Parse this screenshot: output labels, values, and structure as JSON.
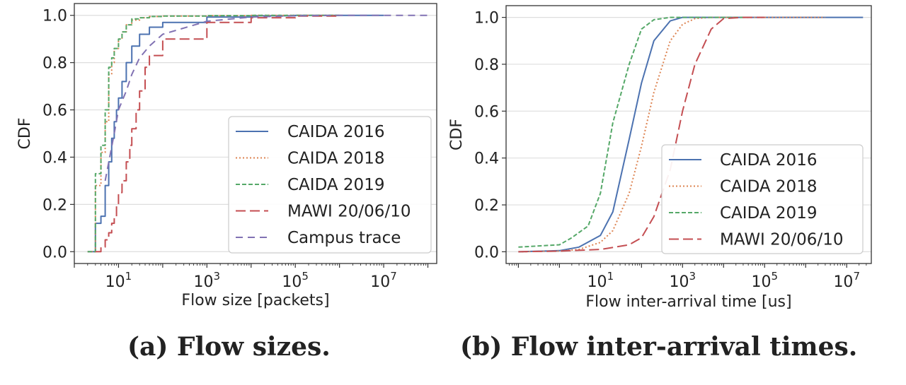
{
  "captions": {
    "a": "(a) Flow sizes.",
    "b": "(b) Flow inter-arrival times."
  },
  "colors": {
    "caida2016": "#4c72b0",
    "caida2018": "#dd8452",
    "caida2019": "#55a868",
    "mawi": "#c44e52",
    "campus": "#8172b3"
  },
  "chart_data": [
    {
      "type": "line",
      "xlabel": "Flow size [packets]",
      "ylabel": "CDF",
      "xscale": "log",
      "xlim_log10": [
        0,
        8.2
      ],
      "ylim": [
        -0.05,
        1.05
      ],
      "xticks": [
        {
          "mant": "10",
          "exp": "1",
          "pos": 1
        },
        {
          "mant": "10",
          "exp": "3",
          "pos": 3
        },
        {
          "mant": "10",
          "exp": "5",
          "pos": 5
        },
        {
          "mant": "10",
          "exp": "7",
          "pos": 7
        }
      ],
      "yticks": [
        "0.0",
        "0.2",
        "0.4",
        "0.6",
        "0.8",
        "1.0"
      ],
      "grid": "horizontal",
      "legend_position": "lower-right",
      "series": [
        {
          "name": "CAIDA 2016",
          "color_key": "caida2016",
          "dash": "solid",
          "step": true,
          "x": [
            2,
            3,
            4,
            5,
            6,
            7,
            8,
            9,
            10,
            12,
            15,
            20,
            30,
            50,
            100,
            1000,
            10000,
            100000,
            1000000,
            10000000
          ],
          "y": [
            0.0,
            0.12,
            0.15,
            0.28,
            0.38,
            0.48,
            0.55,
            0.6,
            0.65,
            0.72,
            0.8,
            0.87,
            0.92,
            0.95,
            0.97,
            0.993,
            0.998,
            1.0,
            1.0,
            1.0
          ]
        },
        {
          "name": "CAIDA 2018",
          "color_key": "caida2018",
          "dash": "dotted",
          "step": true,
          "x": [
            2,
            3,
            4,
            5,
            6,
            7,
            8,
            10,
            12,
            15,
            20,
            30,
            50,
            100,
            1000,
            10000,
            100000,
            1000000
          ],
          "y": [
            0.0,
            0.28,
            0.42,
            0.55,
            0.75,
            0.8,
            0.86,
            0.9,
            0.93,
            0.96,
            0.98,
            0.99,
            0.995,
            0.997,
            0.999,
            1.0,
            1.0,
            1.0
          ]
        },
        {
          "name": "CAIDA 2019",
          "color_key": "caida2019",
          "dash": "dashed",
          "step": true,
          "x": [
            2,
            3,
            4,
            5,
            6,
            7,
            8,
            10,
            12,
            15,
            20,
            30,
            50,
            100,
            1000,
            10000,
            100000,
            1000000
          ],
          "y": [
            0.0,
            0.33,
            0.45,
            0.6,
            0.78,
            0.82,
            0.86,
            0.9,
            0.93,
            0.96,
            0.985,
            0.99,
            0.995,
            0.997,
            0.999,
            1.0,
            1.0,
            1.0
          ]
        },
        {
          "name": "MAWI 20/06/10",
          "color_key": "mawi",
          "dash": "longdash",
          "step": true,
          "x": [
            3,
            4,
            5,
            6,
            7,
            8,
            9,
            10,
            12,
            15,
            18,
            20,
            25,
            30,
            40,
            50,
            100,
            1000,
            10000,
            100000,
            1000000
          ],
          "y": [
            0.0,
            0.02,
            0.05,
            0.08,
            0.12,
            0.15,
            0.2,
            0.25,
            0.3,
            0.38,
            0.45,
            0.52,
            0.6,
            0.68,
            0.78,
            0.83,
            0.9,
            0.97,
            0.99,
            0.997,
            1.0
          ]
        },
        {
          "name": "Campus trace",
          "color_key": "campus",
          "dash": "mediumdash",
          "step": false,
          "x": [
            5,
            8,
            10,
            15,
            20,
            30,
            50,
            100,
            1000,
            10000,
            100000,
            1000000,
            10000000,
            100000000
          ],
          "y": [
            0.3,
            0.5,
            0.6,
            0.68,
            0.75,
            0.82,
            0.87,
            0.92,
            0.975,
            0.993,
            0.998,
            1.0,
            1.0,
            1.0
          ]
        }
      ]
    },
    {
      "type": "line",
      "xlabel": "Flow inter-arrival time [us]",
      "ylabel": "CDF",
      "xscale": "log",
      "xlim_log10": [
        -1.3,
        7.6
      ],
      "ylim": [
        -0.05,
        1.05
      ],
      "xticks": [
        {
          "mant": "10",
          "exp": "1",
          "pos": 1
        },
        {
          "mant": "10",
          "exp": "3",
          "pos": 3
        },
        {
          "mant": "10",
          "exp": "5",
          "pos": 5
        },
        {
          "mant": "10",
          "exp": "7",
          "pos": 7
        }
      ],
      "yticks": [
        "0.0",
        "0.2",
        "0.4",
        "0.6",
        "0.8",
        "1.0"
      ],
      "grid": "horizontal",
      "legend_position": "lower-right",
      "series": [
        {
          "name": "CAIDA 2016",
          "color_key": "caida2016",
          "dash": "solid",
          "step": false,
          "x": [
            0.1,
            1,
            3,
            10,
            20,
            50,
            100,
            200,
            500,
            1000,
            3000,
            10000,
            100000,
            1000000,
            10000000,
            25000000
          ],
          "y": [
            0.0,
            0.005,
            0.02,
            0.07,
            0.17,
            0.48,
            0.72,
            0.9,
            0.985,
            1.0,
            1.0,
            1.0,
            1.0,
            1.0,
            1.0,
            1.0
          ]
        },
        {
          "name": "CAIDA 2018",
          "color_key": "caida2018",
          "dash": "dotted",
          "step": false,
          "x": [
            0.1,
            1,
            3,
            10,
            20,
            50,
            100,
            200,
            500,
            1000,
            2000,
            5000,
            10000,
            100000,
            1000000,
            3000000
          ],
          "y": [
            0.0,
            0.003,
            0.01,
            0.04,
            0.09,
            0.25,
            0.45,
            0.68,
            0.9,
            0.97,
            0.995,
            1.0,
            1.0,
            1.0,
            1.0,
            1.0
          ]
        },
        {
          "name": "CAIDA 2019",
          "color_key": "caida2019",
          "dash": "dashed",
          "step": false,
          "x": [
            0.1,
            1,
            2,
            5,
            10,
            20,
            50,
            100,
            200,
            500,
            1000,
            10000,
            30000
          ],
          "y": [
            0.02,
            0.03,
            0.06,
            0.11,
            0.25,
            0.55,
            0.8,
            0.95,
            0.99,
            1.0,
            1.0,
            1.0,
            1.0
          ]
        },
        {
          "name": "MAWI 20/06/10",
          "color_key": "mawi",
          "dash": "longdash",
          "step": false,
          "x": [
            0.1,
            1,
            10,
            50,
            100,
            200,
            500,
            1000,
            2000,
            5000,
            10000,
            30000,
            100000
          ],
          "y": [
            0.0,
            0.003,
            0.01,
            0.03,
            0.06,
            0.15,
            0.35,
            0.6,
            0.8,
            0.95,
            0.995,
            1.0,
            1.0
          ]
        }
      ]
    }
  ]
}
